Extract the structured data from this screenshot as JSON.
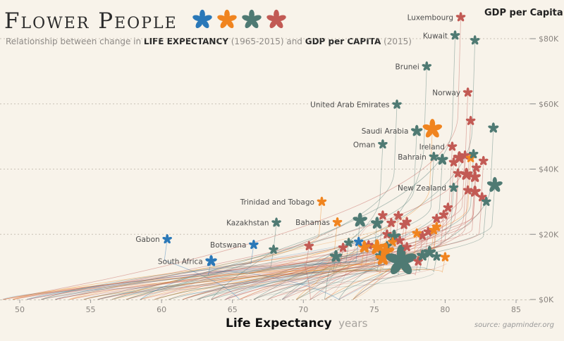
{
  "header": {
    "title": "Flower People",
    "subtitle_parts": [
      {
        "text": "Relationship between change in ",
        "strong": false
      },
      {
        "text": "LIFE EXPECTANCY",
        "strong": true
      },
      {
        "text": " (1965-2015) and ",
        "strong": false
      },
      {
        "text": "GDP per CAPITA",
        "strong": true
      },
      {
        "text": " (2015)",
        "strong": false
      }
    ],
    "title_flower_colors": [
      "#2a78b8",
      "#f0841f",
      "#4f7a73",
      "#c25a54"
    ]
  },
  "source": "source: gapminder.org",
  "colors": {
    "background": "#f8f3ea",
    "grid": "#c9c2b6",
    "tick_text": "#8a8580",
    "label_text": "#4d4d4d",
    "region_colors": [
      "#2a78b8",
      "#f0841f",
      "#4f7a73",
      "#c25a54"
    ]
  },
  "chart_data": {
    "type": "scatter",
    "xlabel": "Life Expectancy",
    "xlabel_unit": "years",
    "ylabel": "GDP per Capita",
    "xlim": [
      48.5,
      86.5
    ],
    "ylim": [
      0,
      86000
    ],
    "xticks": [
      50,
      55,
      60,
      65,
      70,
      75,
      80,
      85
    ],
    "xtick_labels": [
      "50",
      "55",
      "60",
      "65",
      "70",
      "75",
      "80",
      "85"
    ],
    "yticks": [
      0,
      20000,
      40000,
      60000,
      80000
    ],
    "ytick_labels": [
      "$0K",
      "$20K",
      "$40K",
      "$60K",
      "$80K"
    ],
    "grid": "horizontal dashed",
    "trail_start_x": [
      48.8,
      49.5,
      50.5,
      51.5,
      52.5,
      53.5,
      54.5,
      55.5,
      56.5,
      57.5,
      58.5,
      59.5,
      60.5,
      61.5,
      62.5,
      63.5,
      64.5,
      65.5,
      66.5,
      67.5,
      68.5,
      69.5,
      70.5,
      71.5,
      72.5,
      73.5
    ],
    "points": [
      {
        "x": 81.1,
        "y": 86600,
        "c": 3,
        "s": 1.0,
        "label": "Luxembourg",
        "anchor": "end"
      },
      {
        "x": 80.7,
        "y": 81000,
        "c": 2,
        "s": 1.0,
        "label": "Kuwait",
        "anchor": "end"
      },
      {
        "x": 82.1,
        "y": 79500,
        "c": 2,
        "s": 1.0,
        "label": "",
        "anchor": "end"
      },
      {
        "x": 78.7,
        "y": 71500,
        "c": 2,
        "s": 1.0,
        "label": "Brunei",
        "anchor": "end"
      },
      {
        "x": 81.6,
        "y": 63500,
        "c": 3,
        "s": 1.0,
        "label": "Norway",
        "anchor": "end"
      },
      {
        "x": 76.6,
        "y": 59800,
        "c": 2,
        "s": 1.0,
        "label": "United Arab Emirates",
        "anchor": "end"
      },
      {
        "x": 81.8,
        "y": 54800,
        "c": 3,
        "s": 1.0,
        "label": "",
        "anchor": "end"
      },
      {
        "x": 83.4,
        "y": 52600,
        "c": 2,
        "s": 1.1,
        "label": "",
        "anchor": "end"
      },
      {
        "x": 78.0,
        "y": 51700,
        "c": 2,
        "s": 1.2,
        "label": "Saudi Arabia",
        "anchor": "end"
      },
      {
        "x": 79.1,
        "y": 52300,
        "c": 1,
        "s": 2.0,
        "label": "",
        "anchor": "end"
      },
      {
        "x": 75.6,
        "y": 47600,
        "c": 2,
        "s": 1.0,
        "label": "Oman",
        "anchor": "end"
      },
      {
        "x": 80.5,
        "y": 46900,
        "c": 3,
        "s": 1.0,
        "label": "Ireland",
        "anchor": "end"
      },
      {
        "x": 79.2,
        "y": 43800,
        "c": 2,
        "s": 1.0,
        "label": "Bahrain",
        "anchor": "end"
      },
      {
        "x": 79.8,
        "y": 42900,
        "c": 2,
        "s": 1.2,
        "label": "",
        "anchor": "end"
      },
      {
        "x": 81.0,
        "y": 43500,
        "c": 3,
        "s": 1.3,
        "label": "",
        "anchor": "end"
      },
      {
        "x": 81.4,
        "y": 44200,
        "c": 3,
        "s": 1.0,
        "label": "",
        "anchor": "end"
      },
      {
        "x": 81.8,
        "y": 43400,
        "c": 1,
        "s": 1.0,
        "label": "",
        "anchor": "end"
      },
      {
        "x": 82.0,
        "y": 44600,
        "c": 2,
        "s": 1.0,
        "label": "",
        "anchor": "end"
      },
      {
        "x": 80.6,
        "y": 42100,
        "c": 3,
        "s": 1.0,
        "label": "",
        "anchor": "end"
      },
      {
        "x": 82.7,
        "y": 42500,
        "c": 3,
        "s": 1.0,
        "label": "",
        "anchor": "end"
      },
      {
        "x": 82.2,
        "y": 40400,
        "c": 3,
        "s": 1.0,
        "label": "",
        "anchor": "end"
      },
      {
        "x": 80.9,
        "y": 38700,
        "c": 3,
        "s": 1.0,
        "label": "",
        "anchor": "end"
      },
      {
        "x": 81.5,
        "y": 38400,
        "c": 3,
        "s": 1.3,
        "label": "",
        "anchor": "end"
      },
      {
        "x": 82.1,
        "y": 37600,
        "c": 3,
        "s": 1.2,
        "label": "",
        "anchor": "end"
      },
      {
        "x": 83.5,
        "y": 35100,
        "c": 2,
        "s": 1.6,
        "label": "",
        "anchor": "end"
      },
      {
        "x": 81.6,
        "y": 33500,
        "c": 3,
        "s": 1.0,
        "label": "",
        "anchor": "end"
      },
      {
        "x": 82.1,
        "y": 33100,
        "c": 3,
        "s": 1.2,
        "label": "",
        "anchor": "end"
      },
      {
        "x": 82.6,
        "y": 31400,
        "c": 3,
        "s": 1.0,
        "label": "",
        "anchor": "end"
      },
      {
        "x": 82.9,
        "y": 30000,
        "c": 2,
        "s": 1.0,
        "label": "",
        "anchor": "end"
      },
      {
        "x": 80.6,
        "y": 34300,
        "c": 2,
        "s": 1.0,
        "label": "New Zealand",
        "anchor": "end"
      },
      {
        "x": 80.2,
        "y": 28200,
        "c": 3,
        "s": 1.0,
        "label": "",
        "anchor": "end"
      },
      {
        "x": 79.9,
        "y": 26000,
        "c": 3,
        "s": 1.0,
        "label": "",
        "anchor": "end"
      },
      {
        "x": 79.4,
        "y": 24800,
        "c": 3,
        "s": 1.0,
        "label": "",
        "anchor": "end"
      },
      {
        "x": 79.4,
        "y": 22300,
        "c": 1,
        "s": 1.0,
        "label": "",
        "anchor": "end"
      },
      {
        "x": 78.8,
        "y": 20800,
        "c": 3,
        "s": 1.0,
        "label": "",
        "anchor": "end"
      },
      {
        "x": 79.2,
        "y": 21300,
        "c": 1,
        "s": 1.0,
        "label": "",
        "anchor": "end"
      },
      {
        "x": 78.4,
        "y": 19600,
        "c": 3,
        "s": 1.0,
        "label": "",
        "anchor": "end"
      },
      {
        "x": 78.0,
        "y": 20300,
        "c": 1,
        "s": 1.0,
        "label": "",
        "anchor": "end"
      },
      {
        "x": 77.1,
        "y": 22900,
        "c": 3,
        "s": 1.0,
        "label": "",
        "anchor": "end"
      },
      {
        "x": 76.7,
        "y": 25700,
        "c": 3,
        "s": 1.0,
        "label": "",
        "anchor": "end"
      },
      {
        "x": 76.2,
        "y": 23500,
        "c": 3,
        "s": 1.0,
        "label": "",
        "anchor": "end"
      },
      {
        "x": 77.3,
        "y": 23800,
        "c": 3,
        "s": 1.0,
        "label": "",
        "anchor": "end"
      },
      {
        "x": 75.2,
        "y": 23400,
        "c": 2,
        "s": 1.3,
        "label": "",
        "anchor": "end"
      },
      {
        "x": 75.6,
        "y": 25800,
        "c": 3,
        "s": 1.0,
        "label": "",
        "anchor": "end"
      },
      {
        "x": 75.9,
        "y": 20000,
        "c": 3,
        "s": 1.0,
        "label": "",
        "anchor": "end"
      },
      {
        "x": 76.4,
        "y": 19300,
        "c": 2,
        "s": 1.4,
        "label": "",
        "anchor": "end"
      },
      {
        "x": 76.3,
        "y": 17600,
        "c": 1,
        "s": 1.0,
        "label": "",
        "anchor": "end"
      },
      {
        "x": 76.8,
        "y": 18100,
        "c": 3,
        "s": 1.0,
        "label": "",
        "anchor": "end"
      },
      {
        "x": 75.9,
        "y": 16400,
        "c": 2,
        "s": 1.0,
        "label": "",
        "anchor": "end"
      },
      {
        "x": 75.2,
        "y": 16000,
        "c": 1,
        "s": 1.6,
        "label": "",
        "anchor": "end"
      },
      {
        "x": 75.8,
        "y": 14700,
        "c": 1,
        "s": 1.8,
        "label": "",
        "anchor": "end"
      },
      {
        "x": 75.4,
        "y": 13500,
        "c": 2,
        "s": 1.0,
        "label": "",
        "anchor": "end"
      },
      {
        "x": 75.6,
        "y": 12600,
        "c": 1,
        "s": 1.5,
        "label": "",
        "anchor": "end"
      },
      {
        "x": 76.9,
        "y": 11900,
        "c": 2,
        "s": 3.2,
        "label": "",
        "anchor": "end"
      },
      {
        "x": 74.6,
        "y": 16700,
        "c": 3,
        "s": 1.0,
        "label": "",
        "anchor": "end"
      },
      {
        "x": 74.3,
        "y": 16100,
        "c": 1,
        "s": 1.3,
        "label": "",
        "anchor": "end"
      },
      {
        "x": 73.9,
        "y": 17700,
        "c": 0,
        "s": 1.0,
        "label": "",
        "anchor": "end"
      },
      {
        "x": 73.2,
        "y": 17400,
        "c": 2,
        "s": 1.0,
        "label": "",
        "anchor": "end"
      },
      {
        "x": 72.8,
        "y": 15900,
        "c": 3,
        "s": 1.0,
        "label": "",
        "anchor": "end"
      },
      {
        "x": 72.3,
        "y": 13200,
        "c": 2,
        "s": 1.3,
        "label": "",
        "anchor": "end"
      },
      {
        "x": 78.1,
        "y": 11700,
        "c": 3,
        "s": 1.0,
        "label": "",
        "anchor": "end"
      },
      {
        "x": 78.4,
        "y": 13500,
        "c": 2,
        "s": 1.2,
        "label": "",
        "anchor": "end"
      },
      {
        "x": 78.9,
        "y": 14500,
        "c": 2,
        "s": 1.3,
        "label": "",
        "anchor": "end"
      },
      {
        "x": 79.4,
        "y": 13200,
        "c": 2,
        "s": 1.0,
        "label": "",
        "anchor": "end"
      },
      {
        "x": 80.0,
        "y": 13000,
        "c": 1,
        "s": 1.0,
        "label": "",
        "anchor": "end"
      },
      {
        "x": 77.3,
        "y": 16100,
        "c": 3,
        "s": 1.0,
        "label": "",
        "anchor": "end"
      },
      {
        "x": 74.0,
        "y": 24300,
        "c": 2,
        "s": 1.5,
        "label": "",
        "anchor": "end"
      },
      {
        "x": 72.4,
        "y": 23700,
        "c": 1,
        "s": 1.0,
        "label": "Bahamas",
        "anchor": "end"
      },
      {
        "x": 71.3,
        "y": 30000,
        "c": 1,
        "s": 1.0,
        "label": "Trinidad and Tobago",
        "anchor": "end"
      },
      {
        "x": 68.1,
        "y": 23600,
        "c": 2,
        "s": 1.0,
        "label": "Kazakhstan",
        "anchor": "end"
      },
      {
        "x": 70.4,
        "y": 16400,
        "c": 3,
        "s": 1.0,
        "label": "",
        "anchor": "end"
      },
      {
        "x": 67.9,
        "y": 15300,
        "c": 2,
        "s": 1.0,
        "label": "",
        "anchor": "end"
      },
      {
        "x": 66.5,
        "y": 16800,
        "c": 0,
        "s": 1.0,
        "label": "Botswana",
        "anchor": "end"
      },
      {
        "x": 60.4,
        "y": 18500,
        "c": 0,
        "s": 1.0,
        "label": "Gabon",
        "anchor": "end"
      },
      {
        "x": 63.5,
        "y": 11800,
        "c": 0,
        "s": 1.2,
        "label": "South Africa",
        "anchor": "end"
      }
    ]
  }
}
